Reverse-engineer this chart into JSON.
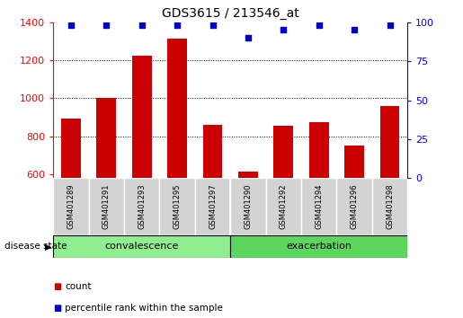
{
  "title": "GDS3615 / 213546_at",
  "samples": [
    "GSM401289",
    "GSM401291",
    "GSM401293",
    "GSM401295",
    "GSM401297",
    "GSM401290",
    "GSM401292",
    "GSM401294",
    "GSM401296",
    "GSM401298"
  ],
  "counts": [
    895,
    1000,
    1225,
    1315,
    860,
    615,
    855,
    875,
    750,
    960
  ],
  "percentiles": [
    98,
    98,
    98,
    98,
    98,
    90,
    95,
    98,
    95,
    98
  ],
  "bar_color": "#CC0000",
  "dot_color": "#0000CC",
  "ylim_left": [
    580,
    1400
  ],
  "ylim_right": [
    0,
    100
  ],
  "yticks_left": [
    600,
    800,
    1000,
    1200,
    1400
  ],
  "yticks_right": [
    0,
    25,
    50,
    75,
    100
  ],
  "bg_color": "#FFFFFF",
  "sample_box_color": "#D3D3D3",
  "conv_color": "#90EE90",
  "exac_color": "#5CD65C",
  "legend_count_color": "#CC0000",
  "legend_pct_color": "#0000CC",
  "n_conv": 5,
  "n_exac": 5
}
